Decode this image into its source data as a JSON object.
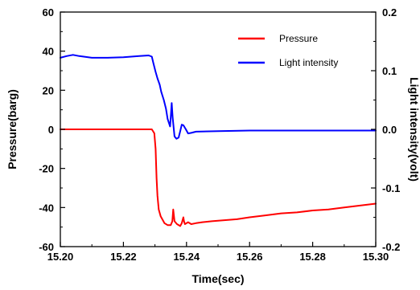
{
  "chart_data": {
    "type": "line",
    "xlabel": "Time(sec)",
    "ylabel": "Pressure(barg)",
    "ylabel_right": "Light intensity(volt)",
    "xlim": [
      15.2,
      15.3
    ],
    "ylim": [
      -60,
      60
    ],
    "ylim_right": [
      -0.2,
      0.2
    ],
    "x_ticks": [
      "15.20",
      "15.22",
      "15.24",
      "15.26",
      "15.28",
      "15.30"
    ],
    "y_ticks": [
      "60",
      "40",
      "20",
      "0",
      "-20",
      "-40",
      "-60"
    ],
    "y_ticks_right": [
      "0.2",
      "0.1",
      "0.0",
      "-0.1",
      "-0.2"
    ],
    "grid": false,
    "legend_position": "top-right",
    "series": [
      {
        "name": "Pressure",
        "axis": "left",
        "color": "#ff0000",
        "x": [
          15.2,
          15.229,
          15.2298,
          15.2302,
          15.2305,
          15.2308,
          15.2312,
          15.2318,
          15.2325,
          15.233,
          15.234,
          15.235,
          15.2355,
          15.2358,
          15.2362,
          15.237,
          15.238,
          15.2385,
          15.239,
          15.2392,
          15.2395,
          15.2405,
          15.2415,
          15.243,
          15.245,
          15.248,
          15.252,
          15.256,
          15.26,
          15.265,
          15.27,
          15.275,
          15.28,
          15.285,
          15.29,
          15.295,
          15.3
        ],
        "values": [
          0,
          0,
          -2,
          -10,
          -25,
          -34,
          -41,
          -44.5,
          -46.5,
          -48,
          -49,
          -49,
          -47,
          -41,
          -47,
          -48.5,
          -49.5,
          -48,
          -45,
          -47,
          -48.5,
          -47.5,
          -48.5,
          -48,
          -47.5,
          -47,
          -46.5,
          -46,
          -45,
          -44,
          -43,
          -42.5,
          -41.5,
          -41,
          -40,
          -39,
          -38
        ]
      },
      {
        "name": "Light intensity",
        "axis": "right",
        "color": "#0000ff",
        "x": [
          15.2,
          15.202,
          15.204,
          15.206,
          15.21,
          15.215,
          15.22,
          15.225,
          15.228,
          15.229,
          15.2295,
          15.2302,
          15.2308,
          15.2315,
          15.232,
          15.2328,
          15.2335,
          15.234,
          15.2348,
          15.235,
          15.2353,
          15.2356,
          15.2362,
          15.2368,
          15.2375,
          15.238,
          15.2385,
          15.239,
          15.2398,
          15.2405,
          15.2415,
          15.243,
          15.25,
          15.26,
          15.27,
          15.28,
          15.29,
          15.3
        ],
        "values": [
          0.122,
          0.125,
          0.127,
          0.125,
          0.122,
          0.122,
          0.123,
          0.125,
          0.126,
          0.124,
          0.113,
          0.098,
          0.087,
          0.076,
          0.064,
          0.05,
          0.035,
          0.018,
          0.005,
          0.02,
          0.045,
          0.02,
          -0.012,
          -0.016,
          -0.014,
          -0.003,
          0.008,
          0.007,
          0.0,
          -0.007,
          -0.006,
          -0.004,
          -0.003,
          -0.002,
          -0.002,
          -0.002,
          -0.002,
          -0.002
        ]
      }
    ]
  }
}
